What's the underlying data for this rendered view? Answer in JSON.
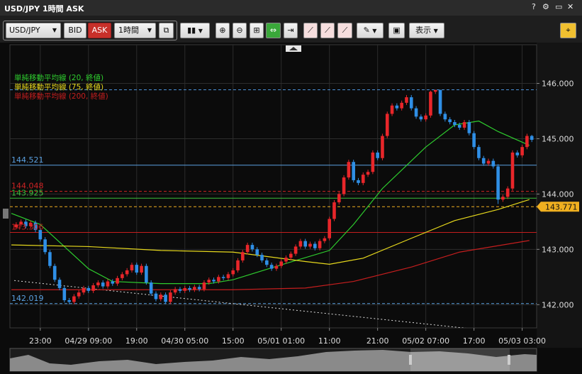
{
  "window": {
    "title": "USD/JPY 1時間 ASK"
  },
  "toolbar": {
    "symbol": "USD/JPY",
    "bid": "BID",
    "ask": "ASK",
    "interval": "1時間",
    "display": "表示"
  },
  "chart_data": {
    "type": "candlestick",
    "up_color": "#e8262a",
    "down_color": "#2f8fe6",
    "ohlc": [
      [
        143.4,
        143.49,
        143.36,
        143.45
      ],
      [
        143.45,
        143.54,
        143.41,
        143.5
      ],
      [
        143.5,
        143.54,
        143.38,
        143.42
      ],
      [
        143.42,
        143.52,
        143.38,
        143.48
      ],
      [
        143.48,
        143.52,
        143.31,
        143.35
      ],
      [
        143.35,
        143.39,
        143.14,
        143.18
      ],
      [
        143.18,
        143.22,
        142.91,
        142.95
      ],
      [
        142.95,
        142.99,
        142.66,
        142.7
      ],
      [
        142.7,
        142.74,
        142.41,
        142.45
      ],
      [
        142.45,
        142.49,
        142.26,
        142.3
      ],
      [
        142.3,
        142.34,
        142.04,
        142.08
      ],
      [
        142.08,
        142.12,
        142.01,
        142.05
      ],
      [
        142.05,
        142.19,
        142.01,
        142.15
      ],
      [
        142.15,
        142.26,
        142.11,
        142.22
      ],
      [
        142.22,
        142.34,
        142.18,
        142.3
      ],
      [
        142.3,
        142.34,
        142.21,
        142.25
      ],
      [
        142.25,
        142.39,
        142.21,
        142.35
      ],
      [
        142.35,
        142.44,
        142.31,
        142.4
      ],
      [
        142.4,
        142.44,
        142.29,
        142.33
      ],
      [
        142.33,
        142.46,
        142.29,
        142.42
      ],
      [
        142.42,
        142.46,
        142.34,
        142.38
      ],
      [
        142.38,
        142.52,
        142.34,
        142.48
      ],
      [
        142.48,
        142.59,
        142.44,
        142.55
      ],
      [
        142.55,
        142.66,
        142.51,
        142.62
      ],
      [
        142.62,
        142.76,
        142.58,
        142.72
      ],
      [
        142.72,
        142.76,
        142.54,
        142.58
      ],
      [
        142.58,
        142.74,
        142.54,
        142.7
      ],
      [
        142.7,
        142.74,
        142.36,
        142.4
      ],
      [
        142.4,
        142.44,
        142.16,
        142.2
      ],
      [
        142.2,
        142.24,
        142.06,
        142.1
      ],
      [
        142.1,
        142.22,
        142.06,
        142.18
      ],
      [
        142.18,
        142.22,
        142.01,
        142.05
      ],
      [
        142.05,
        142.26,
        142.01,
        142.22
      ],
      [
        142.22,
        142.32,
        142.18,
        142.28
      ],
      [
        142.28,
        142.32,
        142.21,
        142.25
      ],
      [
        142.25,
        142.34,
        142.21,
        142.3
      ],
      [
        142.3,
        142.34,
        142.23,
        142.27
      ],
      [
        142.27,
        142.36,
        142.23,
        142.32
      ],
      [
        142.32,
        142.36,
        142.24,
        142.28
      ],
      [
        142.28,
        142.44,
        142.24,
        142.4
      ],
      [
        142.4,
        142.49,
        142.36,
        142.45
      ],
      [
        142.45,
        142.49,
        142.38,
        142.42
      ],
      [
        142.42,
        142.54,
        142.38,
        142.5
      ],
      [
        142.5,
        142.54,
        142.44,
        142.48
      ],
      [
        142.48,
        142.59,
        142.44,
        142.55
      ],
      [
        142.55,
        142.66,
        142.51,
        142.62
      ],
      [
        142.62,
        142.84,
        142.58,
        142.8
      ],
      [
        142.8,
        142.99,
        142.76,
        142.95
      ],
      [
        142.95,
        143.12,
        142.91,
        143.08
      ],
      [
        143.08,
        143.12,
        142.96,
        143.0
      ],
      [
        143.0,
        143.04,
        142.86,
        142.9
      ],
      [
        142.9,
        142.94,
        142.76,
        142.8
      ],
      [
        142.8,
        142.84,
        142.68,
        142.72
      ],
      [
        142.72,
        142.76,
        142.61,
        142.65
      ],
      [
        142.65,
        142.74,
        142.61,
        142.7
      ],
      [
        142.7,
        142.82,
        142.66,
        142.78
      ],
      [
        142.78,
        142.89,
        142.74,
        142.85
      ],
      [
        142.85,
        142.96,
        142.81,
        142.92
      ],
      [
        142.92,
        143.09,
        142.88,
        143.05
      ],
      [
        143.05,
        143.19,
        143.01,
        143.15
      ],
      [
        143.15,
        143.19,
        143.01,
        143.05
      ],
      [
        143.05,
        143.14,
        143.01,
        143.1
      ],
      [
        143.1,
        143.14,
        142.98,
        143.02
      ],
      [
        143.02,
        143.19,
        142.98,
        143.15
      ],
      [
        143.15,
        143.24,
        143.11,
        143.2
      ],
      [
        143.2,
        143.59,
        143.16,
        143.55
      ],
      [
        143.55,
        143.89,
        143.51,
        143.85
      ],
      [
        143.85,
        144.04,
        143.81,
        144.0
      ],
      [
        144.0,
        144.34,
        143.96,
        144.3
      ],
      [
        144.3,
        144.62,
        144.26,
        144.58
      ],
      [
        144.58,
        144.62,
        144.21,
        144.25
      ],
      [
        144.25,
        144.29,
        144.16,
        144.2
      ],
      [
        144.2,
        144.39,
        144.16,
        144.35
      ],
      [
        144.35,
        144.44,
        144.31,
        144.4
      ],
      [
        144.4,
        144.79,
        144.36,
        144.75
      ],
      [
        144.75,
        144.79,
        144.61,
        144.65
      ],
      [
        144.65,
        145.09,
        144.61,
        145.05
      ],
      [
        145.05,
        145.49,
        145.01,
        145.45
      ],
      [
        145.45,
        145.64,
        145.41,
        145.6
      ],
      [
        145.6,
        145.64,
        145.51,
        145.55
      ],
      [
        145.55,
        145.69,
        145.51,
        145.65
      ],
      [
        145.65,
        145.79,
        145.61,
        145.75
      ],
      [
        145.75,
        145.79,
        145.51,
        145.55
      ],
      [
        145.55,
        145.59,
        145.36,
        145.4
      ],
      [
        145.4,
        145.44,
        145.31,
        145.35
      ],
      [
        145.35,
        145.46,
        145.31,
        145.42
      ],
      [
        145.42,
        145.87,
        145.38,
        145.85
      ],
      [
        145.85,
        145.89,
        145.81,
        145.88
      ],
      [
        145.88,
        145.89,
        145.41,
        145.45
      ],
      [
        145.45,
        145.49,
        145.31,
        145.35
      ],
      [
        145.35,
        145.39,
        145.26,
        145.3
      ],
      [
        145.3,
        145.34,
        145.21,
        145.25
      ],
      [
        145.25,
        145.29,
        145.16,
        145.2
      ],
      [
        145.2,
        145.34,
        145.16,
        145.3
      ],
      [
        145.3,
        145.34,
        145.06,
        145.1
      ],
      [
        145.1,
        145.14,
        144.81,
        144.85
      ],
      [
        144.85,
        144.89,
        144.61,
        144.65
      ],
      [
        144.65,
        144.69,
        144.51,
        144.55
      ],
      [
        144.55,
        144.64,
        144.51,
        144.6
      ],
      [
        144.6,
        144.64,
        144.46,
        144.5
      ],
      [
        144.5,
        144.54,
        143.82,
        143.9
      ],
      [
        143.9,
        143.99,
        143.86,
        143.95
      ],
      [
        143.95,
        144.14,
        143.91,
        144.1
      ],
      [
        144.1,
        144.79,
        144.06,
        144.75
      ],
      [
        144.75,
        144.79,
        144.66,
        144.7
      ],
      [
        144.7,
        144.89,
        144.66,
        144.85
      ],
      [
        144.85,
        145.09,
        144.81,
        145.05
      ],
      [
        145.05,
        145.07,
        144.94,
        144.98
      ]
    ],
    "xlim": [
      -1.3,
      108
    ],
    "xticks": [
      {
        "value": 5,
        "label": "23:00"
      },
      {
        "value": 15,
        "label": "04/29 09:00"
      },
      {
        "value": 25,
        "label": "19:00"
      },
      {
        "value": 35,
        "label": "04/30 05:00"
      },
      {
        "value": 45,
        "label": "15:00"
      },
      {
        "value": 55,
        "label": "05/01 01:00"
      },
      {
        "value": 65,
        "label": "11:00"
      },
      {
        "value": 75,
        "label": "21:00"
      },
      {
        "value": 85,
        "label": "05/02 07:00"
      },
      {
        "value": 95,
        "label": "17:00"
      },
      {
        "value": 105,
        "label": "05/03 03:00"
      }
    ],
    "ylim": [
      141.58,
      146.7
    ],
    "yticks": [
      {
        "value": 142,
        "label": "142.000"
      },
      {
        "value": 143,
        "label": "143.000"
      },
      {
        "value": 144,
        "label": "144.000"
      },
      {
        "value": 145,
        "label": "145.000"
      },
      {
        "value": 146,
        "label": "146.000"
      }
    ],
    "grid": true,
    "series": [
      {
        "name": "単純移動平均線 (20, 終値)",
        "color": "#2ecc2e",
        "x": [
          -1,
          5,
          10,
          15,
          20,
          30,
          40,
          45,
          55,
          65,
          70,
          76,
          85,
          91,
          96,
          100,
          106.5
        ],
        "values": [
          143.65,
          143.45,
          143.05,
          142.65,
          142.42,
          142.38,
          142.38,
          142.45,
          142.72,
          142.98,
          143.45,
          144.1,
          144.85,
          145.25,
          145.32,
          145.13,
          144.88
        ]
      },
      {
        "name": "単純移動平均線 (75, 終値)",
        "color": "#e6d81c",
        "x": [
          -1,
          15,
          30,
          45,
          60,
          65,
          72,
          82,
          91,
          100,
          106.5
        ],
        "values": [
          143.08,
          143.05,
          142.98,
          142.95,
          142.78,
          142.73,
          142.84,
          143.2,
          143.52,
          143.72,
          143.9
        ]
      },
      {
        "name": "単純移動平均線 (200, 終値)",
        "color": "#c41e1e",
        "x": [
          -1,
          30,
          45,
          60,
          70,
          82,
          92,
          106.5
        ],
        "values": [
          142.27,
          142.27,
          142.27,
          142.3,
          142.42,
          142.68,
          142.95,
          143.16
        ]
      }
    ],
    "levels": [
      {
        "value": 145.885,
        "color": "#4a90d9",
        "dash": true,
        "show_label": false
      },
      {
        "value": 144.521,
        "color": "#5aa0e0",
        "dash": false
      },
      {
        "value": 144.048,
        "color": "#d02424",
        "dash": true
      },
      {
        "value": 143.925,
        "color": "#3bbf3b",
        "dash": false
      },
      {
        "value": 143.771,
        "color": "#f0b020",
        "dash": true,
        "side": "right"
      },
      {
        "value": 143.306,
        "color": "#c41e1e",
        "dash": false
      },
      {
        "value": 142.019,
        "color": "#5aa0e0",
        "dash": true
      }
    ],
    "trendline": {
      "color": "#dddddd",
      "x": [
        -0.4,
        94.4
      ],
      "values": [
        142.436,
        141.564
      ]
    }
  }
}
